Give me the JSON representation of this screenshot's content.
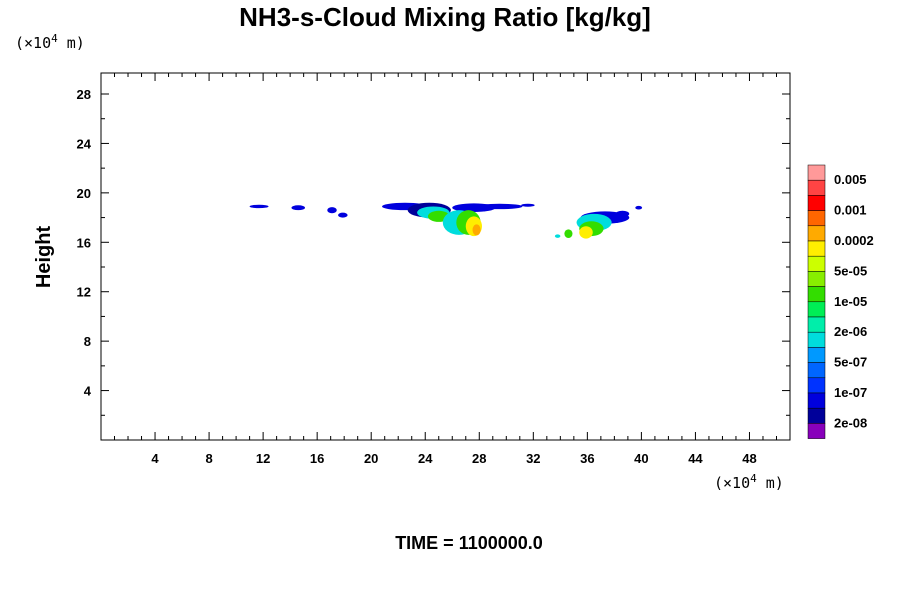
{
  "chart_data": {
    "type": "heatmap",
    "title": "NH3-s-Cloud Mixing Ratio [kg/kg]",
    "xunit": "(×10",
    "xunit_exp": "4",
    "xunit_tail": " m)",
    "yunit": "(×10",
    "yunit_exp": "4",
    "yunit_tail": " m)",
    "ylabel": "Height",
    "xlim": [
      0,
      51
    ],
    "ylim": [
      0,
      29.7
    ],
    "x_ticks": [
      "4",
      "8",
      "12",
      "16",
      "20",
      "24",
      "28",
      "32",
      "36",
      "40",
      "44",
      "48"
    ],
    "x_tick_values": [
      4,
      8,
      12,
      16,
      20,
      24,
      28,
      32,
      36,
      40,
      44,
      48
    ],
    "y_ticks": [
      "4",
      "8",
      "12",
      "16",
      "20",
      "24",
      "28"
    ],
    "y_tick_values": [
      4,
      8,
      12,
      16,
      20,
      24,
      28
    ],
    "colorbar": {
      "colors": [
        "#ff9999",
        "#ff4444",
        "#ff0000",
        "#ff6600",
        "#ffaa00",
        "#ffee00",
        "#ccff00",
        "#88ee00",
        "#33dd00",
        "#00ee55",
        "#00eeaa",
        "#00dddd",
        "#0099ff",
        "#0066ff",
        "#0033ff",
        "#0000dd",
        "#00009a",
        "#8800bb"
      ],
      "labels": [
        "0.005",
        "0.001",
        "0.0002",
        "5e-05",
        "1e-05",
        "2e-06",
        "5e-07",
        "1e-07",
        "2e-08"
      ]
    },
    "time_label": "TIME = 1100000.0",
    "colors": {
      "blue_edge": "#0000dd",
      "dark_blue": "#00009a",
      "cyan": "#00dddd",
      "green": "#33dd00",
      "yellow": "#ffee00",
      "orange": "#ffaa00"
    }
  }
}
